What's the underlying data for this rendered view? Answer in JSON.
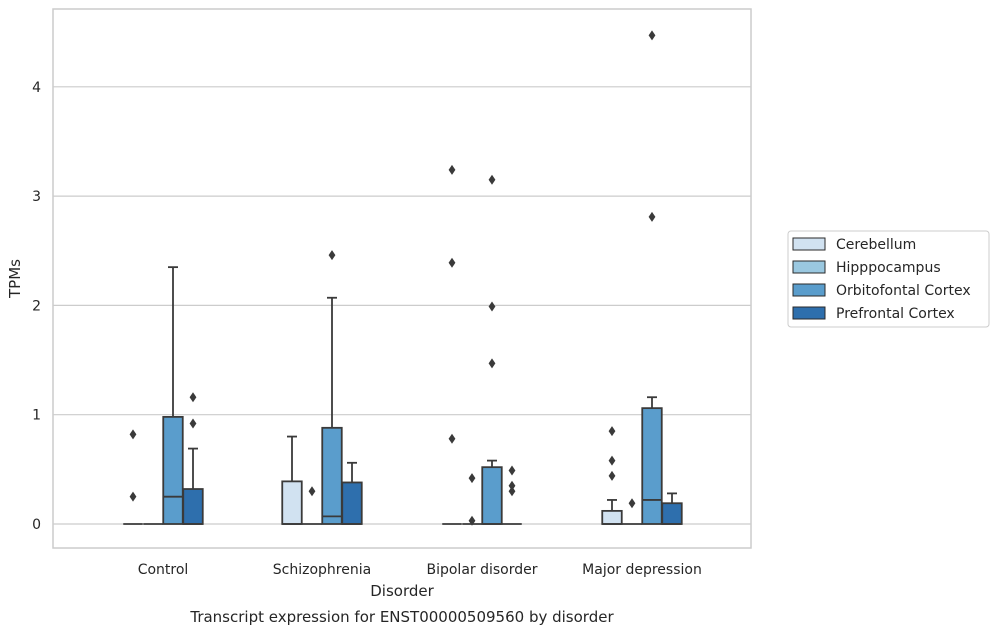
{
  "chart_data": {
    "type": "box",
    "title": "",
    "caption": "Transcript expression for ENST00000509560 by disorder",
    "xlabel": "Disorder",
    "ylabel": "TPMs",
    "ylim": [
      -0.22,
      4.62
    ],
    "yticks": [
      0,
      1,
      2,
      3,
      4
    ],
    "grid": "horizontal",
    "legend_position": "right",
    "categories": [
      "Control",
      "Schizophrenia",
      "Bipolar disorder",
      "Major depression"
    ],
    "series": [
      {
        "name": "Cerebellum",
        "color": "#d1e2f1",
        "boxes": [
          {
            "q1": 0,
            "median": 0,
            "q3": 0,
            "whisker_low": 0,
            "whisker_high": 0,
            "outliers": [
              0.82,
              0.25
            ]
          },
          {
            "q1": 0,
            "median": 0,
            "q3": 0.39,
            "whisker_low": 0,
            "whisker_high": 0.8,
            "outliers": []
          },
          {
            "q1": 0,
            "median": 0,
            "q3": 0,
            "whisker_low": 0,
            "whisker_high": 0,
            "outliers": [
              3.24,
              2.39,
              0.78
            ]
          },
          {
            "q1": 0,
            "median": 0,
            "q3": 0.12,
            "whisker_low": 0,
            "whisker_high": 0.22,
            "outliers": [
              0.85,
              0.58,
              0.44
            ]
          }
        ]
      },
      {
        "name": "Hipppocampus",
        "color": "#9ac8e0",
        "boxes": [
          {
            "q1": 0,
            "median": 0,
            "q3": 0,
            "whisker_low": 0,
            "whisker_high": 0,
            "outliers": []
          },
          {
            "q1": 0,
            "median": 0,
            "q3": 0,
            "whisker_low": 0,
            "whisker_high": 0,
            "outliers": [
              0.3
            ]
          },
          {
            "q1": 0,
            "median": 0,
            "q3": 0,
            "whisker_low": 0,
            "whisker_high": 0,
            "outliers": [
              0.42,
              0.03
            ]
          },
          {
            "q1": 0,
            "median": 0,
            "q3": 0,
            "whisker_low": 0,
            "whisker_high": 0,
            "outliers": [
              0.19
            ]
          }
        ]
      },
      {
        "name": "Orbitofontal Cortex",
        "color": "#5a9dcc",
        "boxes": [
          {
            "q1": 0,
            "median": 0.25,
            "q3": 0.98,
            "whisker_low": 0,
            "whisker_high": 2.35,
            "outliers": []
          },
          {
            "q1": 0,
            "median": 0.07,
            "q3": 0.88,
            "whisker_low": 0,
            "whisker_high": 2.07,
            "outliers": [
              2.46
            ]
          },
          {
            "q1": 0,
            "median": 0,
            "q3": 0.52,
            "whisker_low": 0,
            "whisker_high": 0.58,
            "outliers": [
              3.15,
              1.99,
              1.47
            ]
          },
          {
            "q1": 0,
            "median": 0.22,
            "q3": 1.06,
            "whisker_low": 0,
            "whisker_high": 1.16,
            "outliers": [
              4.47,
              2.81
            ]
          }
        ]
      },
      {
        "name": "Prefrontal Cortex",
        "color": "#2e6fad",
        "boxes": [
          {
            "q1": 0,
            "median": 0,
            "q3": 0.32,
            "whisker_low": 0,
            "whisker_high": 0.69,
            "outliers": [
              1.16,
              0.92
            ]
          },
          {
            "q1": 0,
            "median": 0,
            "q3": 0.38,
            "whisker_low": 0,
            "whisker_high": 0.56,
            "outliers": []
          },
          {
            "q1": 0,
            "median": 0,
            "q3": 0,
            "whisker_low": 0,
            "whisker_high": 0,
            "outliers": [
              0.49,
              0.35,
              0.3
            ]
          },
          {
            "q1": 0,
            "median": 0,
            "q3": 0.19,
            "whisker_low": 0,
            "whisker_high": 0.28,
            "outliers": []
          }
        ]
      }
    ]
  }
}
